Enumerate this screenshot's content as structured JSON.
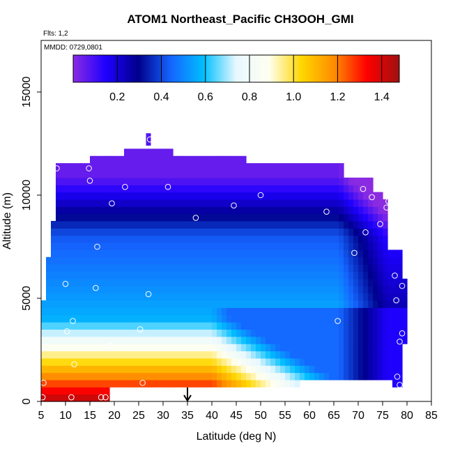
{
  "chart_data": {
    "type": "heatmap",
    "title": "ATOM1 Northeast_Pacific CH3OOH_GMI",
    "flights_note": "Flts: 1,2",
    "date_note": "MMDD: 0729,0801",
    "xlabel": "Latitude (deg N)",
    "ylabel": "Altitude (m)",
    "xlim": [
      5,
      85
    ],
    "ylim": [
      0,
      17500
    ],
    "x_ticks": [
      "5",
      "10",
      "15",
      "20",
      "25",
      "30",
      "35",
      "40",
      "45",
      "50",
      "55",
      "60",
      "65",
      "70",
      "75",
      "80",
      "85"
    ],
    "y_ticks": [
      "0",
      "5000",
      "10000",
      "15000"
    ],
    "colorbar": {
      "range": [
        0.0,
        1.48
      ],
      "ticks": [
        "0.2",
        "0.4",
        "0.6",
        "0.8",
        "1.0",
        "1.2",
        "1.4"
      ],
      "colors": [
        "#8a2be2",
        "#1e00ff",
        "#00008b",
        "#1565ff",
        "#00bfff",
        "#e8f8ff",
        "#fffff0",
        "#ffd700",
        "#ff8c00",
        "#ff0000",
        "#a01010"
      ]
    },
    "marker_latitude": 35,
    "observation_points": [
      {
        "lat": 8.2,
        "alt": 11300
      },
      {
        "lat": 14.8,
        "alt": 11300
      },
      {
        "lat": 15.0,
        "alt": 10700
      },
      {
        "lat": 22.2,
        "alt": 10400
      },
      {
        "lat": 19.5,
        "alt": 9600
      },
      {
        "lat": 27.3,
        "alt": 12700
      },
      {
        "lat": 31.0,
        "alt": 10400
      },
      {
        "lat": 36.7,
        "alt": 8900
      },
      {
        "lat": 44.5,
        "alt": 9500
      },
      {
        "lat": 50.0,
        "alt": 10000
      },
      {
        "lat": 63.5,
        "alt": 9200
      },
      {
        "lat": 67.8,
        "alt": 11400
      },
      {
        "lat": 71.0,
        "alt": 10300
      },
      {
        "lat": 72.8,
        "alt": 9900
      },
      {
        "lat": 75.8,
        "alt": 9400
      },
      {
        "lat": 76.2,
        "alt": 9700
      },
      {
        "lat": 74.5,
        "alt": 8600
      },
      {
        "lat": 71.5,
        "alt": 8200
      },
      {
        "lat": 69.2,
        "alt": 7200
      },
      {
        "lat": 77.2,
        "alt": 7700
      },
      {
        "lat": 16.5,
        "alt": 7500
      },
      {
        "lat": 77.5,
        "alt": 6100
      },
      {
        "lat": 79.0,
        "alt": 5600
      },
      {
        "lat": 10.0,
        "alt": 5700
      },
      {
        "lat": 16.2,
        "alt": 5500
      },
      {
        "lat": 27.0,
        "alt": 5200
      },
      {
        "lat": 77.8,
        "alt": 4900
      },
      {
        "lat": 11.5,
        "alt": 3900
      },
      {
        "lat": 65.8,
        "alt": 3900
      },
      {
        "lat": 10.3,
        "alt": 3400
      },
      {
        "lat": 25.3,
        "alt": 3500
      },
      {
        "lat": 79.0,
        "alt": 3300
      },
      {
        "lat": 78.5,
        "alt": 2900
      },
      {
        "lat": 19.0,
        "alt": 2700
      },
      {
        "lat": 11.8,
        "alt": 1800
      },
      {
        "lat": 78.0,
        "alt": 1200
      },
      {
        "lat": 5.5,
        "alt": 900
      },
      {
        "lat": 25.8,
        "alt": 900
      },
      {
        "lat": 78.5,
        "alt": 800
      },
      {
        "lat": 5.3,
        "alt": 200
      },
      {
        "lat": 11.2,
        "alt": 200
      },
      {
        "lat": 17.3,
        "alt": 200
      },
      {
        "lat": 18.2,
        "alt": 200
      }
    ]
  }
}
